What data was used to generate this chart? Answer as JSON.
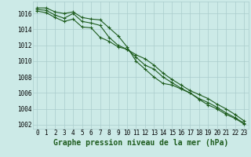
{
  "x": [
    0,
    1,
    2,
    3,
    4,
    5,
    6,
    7,
    8,
    9,
    10,
    11,
    12,
    13,
    14,
    15,
    16,
    17,
    18,
    19,
    20,
    21,
    22,
    23
  ],
  "line1": [
    1016.7,
    1016.7,
    1016.2,
    1016.0,
    1016.2,
    1015.5,
    1015.3,
    1015.2,
    1014.2,
    1013.2,
    1011.8,
    1010.0,
    1009.0,
    1008.0,
    1007.2,
    1007.0,
    1006.5,
    1006.0,
    1005.2,
    1004.5,
    1004.0,
    1003.3,
    1002.8,
    1002.1
  ],
  "line2": [
    1016.5,
    1016.4,
    1015.8,
    1015.4,
    1016.0,
    1015.0,
    1014.8,
    1014.5,
    1013.0,
    1012.0,
    1011.5,
    1010.5,
    1009.5,
    1009.0,
    1008.0,
    1007.3,
    1006.6,
    1006.0,
    1005.3,
    1004.8,
    1004.2,
    1003.5,
    1002.9,
    1002.2
  ],
  "line3": [
    1016.3,
    1016.1,
    1015.5,
    1015.0,
    1015.3,
    1014.3,
    1014.2,
    1013.0,
    1012.5,
    1011.8,
    1011.5,
    1010.8,
    1010.3,
    1009.5,
    1008.5,
    1007.7,
    1007.0,
    1006.3,
    1005.8,
    1005.3,
    1004.6,
    1004.0,
    1003.3,
    1002.5
  ],
  "bg_color": "#cceae7",
  "grid_color": "#aacccc",
  "line_color": "#1e5c1e",
  "marker": "+",
  "xlabel": "Graphe pression niveau de la mer (hPa)",
  "ylim": [
    1001.5,
    1017.5
  ],
  "yticks": [
    1002,
    1004,
    1006,
    1008,
    1010,
    1012,
    1014,
    1016
  ],
  "xticks": [
    0,
    1,
    2,
    3,
    4,
    5,
    6,
    7,
    8,
    9,
    10,
    11,
    12,
    13,
    14,
    15,
    16,
    17,
    18,
    19,
    20,
    21,
    22,
    23
  ],
  "title_fontsize": 7,
  "tick_fontsize": 5.5
}
